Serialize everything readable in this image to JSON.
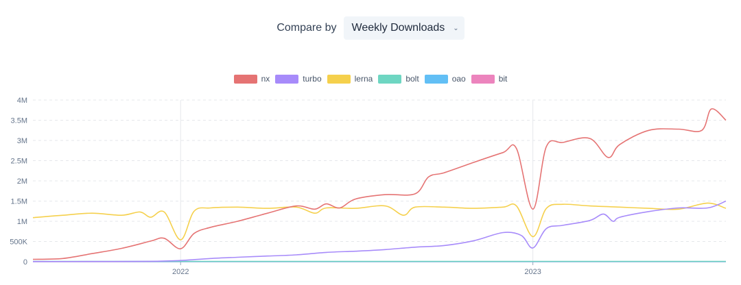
{
  "compare": {
    "label": "Compare by",
    "selected": "Weekly Downloads",
    "chevron_icon": "chevron-down-icon"
  },
  "chart_data": {
    "type": "line",
    "y_ticks": [
      "0",
      "500K",
      "1M",
      "1.5M",
      "2M",
      "2.5M",
      "3M",
      "3.5M",
      "4M"
    ],
    "ylim": [
      0,
      4000000
    ],
    "x_ticks": [
      {
        "label": "2022",
        "x": "2022-01-01"
      },
      {
        "label": "2023",
        "x": "2023-01-01"
      }
    ],
    "xlim": [
      "2021-08-01",
      "2023-07-20"
    ],
    "grid": true,
    "legend_position": "top-center",
    "series": [
      {
        "name": "nx",
        "color": "#e57373",
        "points": [
          [
            "2021-08-01",
            60000
          ],
          [
            "2021-09-01",
            80000
          ],
          [
            "2021-10-01",
            200000
          ],
          [
            "2021-11-01",
            330000
          ],
          [
            "2021-12-01",
            510000
          ],
          [
            "2021-12-15",
            580000
          ],
          [
            "2022-01-01",
            320000
          ],
          [
            "2022-01-15",
            700000
          ],
          [
            "2022-02-01",
            850000
          ],
          [
            "2022-03-01",
            1000000
          ],
          [
            "2022-04-01",
            1200000
          ],
          [
            "2022-05-01",
            1380000
          ],
          [
            "2022-05-20",
            1300000
          ],
          [
            "2022-06-01",
            1430000
          ],
          [
            "2022-06-15",
            1330000
          ],
          [
            "2022-07-01",
            1550000
          ],
          [
            "2022-08-01",
            1660000
          ],
          [
            "2022-09-01",
            1680000
          ],
          [
            "2022-09-15",
            2100000
          ],
          [
            "2022-10-01",
            2200000
          ],
          [
            "2022-11-01",
            2460000
          ],
          [
            "2022-12-01",
            2700000
          ],
          [
            "2022-12-15",
            2800000
          ],
          [
            "2023-01-01",
            1300000
          ],
          [
            "2023-01-15",
            2850000
          ],
          [
            "2023-02-01",
            2950000
          ],
          [
            "2023-03-01",
            3050000
          ],
          [
            "2023-03-20",
            2580000
          ],
          [
            "2023-04-01",
            2900000
          ],
          [
            "2023-05-01",
            3250000
          ],
          [
            "2023-06-01",
            3280000
          ],
          [
            "2023-06-25",
            3250000
          ],
          [
            "2023-07-05",
            3780000
          ],
          [
            "2023-07-20",
            3500000
          ]
        ]
      },
      {
        "name": "turbo",
        "color": "#a78bfa",
        "points": [
          [
            "2021-08-01",
            5000
          ],
          [
            "2021-10-01",
            5000
          ],
          [
            "2021-12-01",
            10000
          ],
          [
            "2022-01-01",
            30000
          ],
          [
            "2022-02-01",
            80000
          ],
          [
            "2022-03-01",
            110000
          ],
          [
            "2022-04-01",
            140000
          ],
          [
            "2022-05-01",
            170000
          ],
          [
            "2022-06-01",
            230000
          ],
          [
            "2022-07-01",
            260000
          ],
          [
            "2022-08-01",
            300000
          ],
          [
            "2022-09-01",
            360000
          ],
          [
            "2022-10-01",
            400000
          ],
          [
            "2022-11-01",
            520000
          ],
          [
            "2022-12-01",
            720000
          ],
          [
            "2022-12-20",
            650000
          ],
          [
            "2023-01-01",
            340000
          ],
          [
            "2023-01-15",
            820000
          ],
          [
            "2023-02-01",
            900000
          ],
          [
            "2023-03-01",
            1020000
          ],
          [
            "2023-03-15",
            1180000
          ],
          [
            "2023-03-25",
            1000000
          ],
          [
            "2023-04-01",
            1100000
          ],
          [
            "2023-05-01",
            1240000
          ],
          [
            "2023-06-01",
            1330000
          ],
          [
            "2023-07-01",
            1330000
          ],
          [
            "2023-07-20",
            1500000
          ]
        ]
      },
      {
        "name": "lerna",
        "color": "#f5d04c",
        "points": [
          [
            "2021-08-01",
            1090000
          ],
          [
            "2021-09-01",
            1150000
          ],
          [
            "2021-10-01",
            1200000
          ],
          [
            "2021-11-01",
            1150000
          ],
          [
            "2021-11-20",
            1230000
          ],
          [
            "2021-12-01",
            1100000
          ],
          [
            "2021-12-15",
            1230000
          ],
          [
            "2022-01-01",
            540000
          ],
          [
            "2022-01-15",
            1250000
          ],
          [
            "2022-02-01",
            1330000
          ],
          [
            "2022-03-01",
            1350000
          ],
          [
            "2022-04-01",
            1320000
          ],
          [
            "2022-05-01",
            1350000
          ],
          [
            "2022-05-20",
            1200000
          ],
          [
            "2022-06-01",
            1330000
          ],
          [
            "2022-07-01",
            1320000
          ],
          [
            "2022-08-01",
            1380000
          ],
          [
            "2022-08-20",
            1150000
          ],
          [
            "2022-09-01",
            1350000
          ],
          [
            "2022-10-01",
            1350000
          ],
          [
            "2022-11-01",
            1320000
          ],
          [
            "2022-12-01",
            1350000
          ],
          [
            "2022-12-15",
            1380000
          ],
          [
            "2023-01-01",
            620000
          ],
          [
            "2023-01-15",
            1320000
          ],
          [
            "2023-02-01",
            1420000
          ],
          [
            "2023-03-01",
            1380000
          ],
          [
            "2023-04-01",
            1350000
          ],
          [
            "2023-05-01",
            1320000
          ],
          [
            "2023-06-01",
            1300000
          ],
          [
            "2023-07-01",
            1450000
          ],
          [
            "2023-07-20",
            1320000
          ]
        ]
      },
      {
        "name": "bolt",
        "color": "#6ed6c2",
        "points": [
          [
            "2021-08-01",
            8000
          ],
          [
            "2022-08-01",
            8000
          ],
          [
            "2023-07-20",
            8000
          ]
        ]
      },
      {
        "name": "oao",
        "color": "#62bff5",
        "points": [
          [
            "2021-08-01",
            4000
          ],
          [
            "2022-08-01",
            4000
          ],
          [
            "2023-07-20",
            4000
          ]
        ]
      },
      {
        "name": "bit",
        "color": "#ec84bd",
        "points": [
          [
            "2021-08-01",
            2000
          ],
          [
            "2022-08-01",
            2000
          ],
          [
            "2023-07-20",
            2000
          ]
        ]
      }
    ]
  }
}
